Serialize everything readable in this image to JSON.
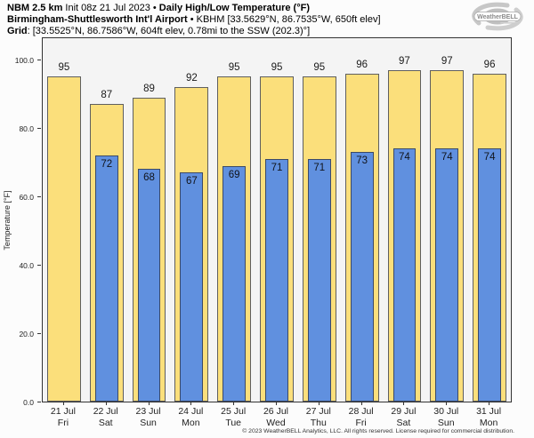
{
  "header": {
    "model_bold": "NBM 2.5 km",
    "init_text": " Init 08z 21 Jul 2023 • ",
    "chart_title_bold": "Daily High/Low Temperature (°F)",
    "station_bold": "Birmingham-Shuttlesworth Int'l Airport",
    "station_details": " • KBHM [33.5629°N, 86.7535°W, 650ft elev]",
    "grid_bold": "Grid",
    "grid_details": ": [33.5525°N, 86.7586°W, 604ft elev, 0.78mi to the SSW (202.3)°]"
  },
  "logo": {
    "text": "WeatherBELL"
  },
  "footer": {
    "copyright": "© 2023 WeatherBELL Analytics, LLC. All rights reserved. License required for commercial distribution."
  },
  "chart_data": {
    "type": "bar",
    "title": "Daily High/Low Temperature (°F)",
    "categories": [
      {
        "date": "21 Jul",
        "day": "Fri"
      },
      {
        "date": "22 Jul",
        "day": "Sat"
      },
      {
        "date": "23 Jul",
        "day": "Sun"
      },
      {
        "date": "24 Jul",
        "day": "Mon"
      },
      {
        "date": "25 Jul",
        "day": "Tue"
      },
      {
        "date": "26 Jul",
        "day": "Wed"
      },
      {
        "date": "27 Jul",
        "day": "Thu"
      },
      {
        "date": "28 Jul",
        "day": "Fri"
      },
      {
        "date": "29 Jul",
        "day": "Sat"
      },
      {
        "date": "30 Jul",
        "day": "Sun"
      },
      {
        "date": "31 Jul",
        "day": "Mon"
      }
    ],
    "series": [
      {
        "name": "High",
        "color": "#fbdf7b",
        "border": "#5f5f5f",
        "values": [
          95,
          87,
          89,
          92,
          95,
          95,
          95,
          96,
          97,
          97,
          96
        ]
      },
      {
        "name": "Low",
        "color": "#6090df",
        "border": "#3c4a66",
        "values": [
          null,
          72,
          68,
          67,
          69,
          71,
          71,
          73,
          74,
          74,
          74
        ]
      }
    ],
    "ylabel": "Temperature [°F]",
    "yticks": [
      "0.0",
      "20.0",
      "40.0",
      "60.0",
      "80.0",
      "100.0"
    ],
    "ylim": [
      0,
      106.3
    ],
    "grid": false,
    "legend": "none",
    "label_style": {
      "high": "above-bar",
      "low": "inside-bar-top"
    }
  }
}
